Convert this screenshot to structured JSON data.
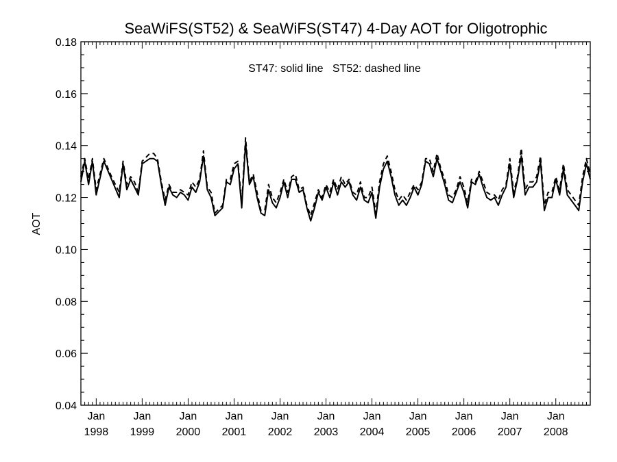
{
  "chart_data": {
    "type": "line",
    "title": "SeaWiFS(ST52) & SeaWiFS(ST47) 4-Day AOT for Oligotrophic",
    "annotation": "ST47: solid line   ST52: dashed line",
    "xlabel": "",
    "ylabel": "AOT",
    "ylim": [
      0.04,
      0.18
    ],
    "xlim": [
      "1997-09",
      "2008-10"
    ],
    "yticks": [
      "0.04",
      "0.06",
      "0.08",
      "0.10",
      "0.12",
      "0.14",
      "0.16",
      "0.18"
    ],
    "xticks": [
      {
        "month": "Jan",
        "year": "1998"
      },
      {
        "month": "Jan",
        "year": "1999"
      },
      {
        "month": "Jan",
        "year": "2000"
      },
      {
        "month": "Jan",
        "year": "2001"
      },
      {
        "month": "Jan",
        "year": "2002"
      },
      {
        "month": "Jan",
        "year": "2003"
      },
      {
        "month": "Jan",
        "year": "2004"
      },
      {
        "month": "Jan",
        "year": "2005"
      },
      {
        "month": "Jan",
        "year": "2006"
      },
      {
        "month": "Jan",
        "year": "2007"
      },
      {
        "month": "Jan",
        "year": "2008"
      }
    ],
    "grid": false,
    "legend": "none",
    "series": [
      {
        "name": "ST47",
        "style": "solid",
        "color": "#000000",
        "x": [
          "1997-09",
          "1997-10",
          "1997-11",
          "1997-12",
          "1998-01",
          "1998-03",
          "1998-05",
          "1998-07",
          "1998-08",
          "1998-09",
          "1998-10",
          "1998-11",
          "1998-12",
          "1999-01",
          "1999-03",
          "1999-04",
          "1999-05",
          "1999-06",
          "1999-07",
          "1999-08",
          "1999-09",
          "1999-10",
          "1999-11",
          "1999-12",
          "2000-01",
          "2000-02",
          "2000-03",
          "2000-04",
          "2000-05",
          "2000-06",
          "2000-07",
          "2000-08",
          "2000-10",
          "2000-11",
          "2000-12",
          "2001-01",
          "2001-02",
          "2001-03",
          "2001-04",
          "2001-05",
          "2001-06",
          "2001-07",
          "2001-08",
          "2001-09",
          "2001-10",
          "2001-11",
          "2001-12",
          "2002-01",
          "2002-02",
          "2002-03",
          "2002-04",
          "2002-05",
          "2002-06",
          "2002-07",
          "2002-08",
          "2002-09",
          "2002-10",
          "2002-11",
          "2002-12",
          "2003-01",
          "2003-02",
          "2003-03",
          "2003-04",
          "2003-05",
          "2003-06",
          "2003-07",
          "2003-08",
          "2003-09",
          "2003-10",
          "2003-11",
          "2003-12",
          "2004-01",
          "2004-02",
          "2004-03",
          "2004-04",
          "2004-05",
          "2004-06",
          "2004-07",
          "2004-08",
          "2004-09",
          "2004-10",
          "2004-11",
          "2004-12",
          "2005-01",
          "2005-02",
          "2005-03",
          "2005-04",
          "2005-05",
          "2005-06",
          "2005-07",
          "2005-08",
          "2005-09",
          "2005-10",
          "2005-11",
          "2005-12",
          "2006-01",
          "2006-02",
          "2006-03",
          "2006-04",
          "2006-05",
          "2006-06",
          "2006-07",
          "2006-08",
          "2006-09",
          "2006-10",
          "2006-11",
          "2006-12",
          "2007-01",
          "2007-02",
          "2007-03",
          "2007-04",
          "2007-05",
          "2007-06",
          "2007-07",
          "2007-08",
          "2007-09",
          "2007-10",
          "2007-11",
          "2007-12",
          "2008-01",
          "2008-02",
          "2008-03",
          "2008-04",
          "2008-05",
          "2008-06",
          "2008-07",
          "2008-08",
          "2008-09",
          "2008-10"
        ],
        "y": [
          0.126,
          0.134,
          0.125,
          0.134,
          0.121,
          0.134,
          0.127,
          0.12,
          0.133,
          0.123,
          0.127,
          0.124,
          0.121,
          0.133,
          0.135,
          0.135,
          0.134,
          0.125,
          0.117,
          0.124,
          0.121,
          0.12,
          0.122,
          0.121,
          0.119,
          0.124,
          0.122,
          0.126,
          0.136,
          0.123,
          0.12,
          0.113,
          0.116,
          0.126,
          0.125,
          0.131,
          0.133,
          0.116,
          0.141,
          0.125,
          0.128,
          0.12,
          0.114,
          0.113,
          0.123,
          0.118,
          0.116,
          0.12,
          0.126,
          0.12,
          0.127,
          0.127,
          0.122,
          0.123,
          0.116,
          0.111,
          0.116,
          0.122,
          0.119,
          0.124,
          0.12,
          0.126,
          0.121,
          0.126,
          0.124,
          0.126,
          0.121,
          0.119,
          0.124,
          0.119,
          0.118,
          0.122,
          0.112,
          0.124,
          0.131,
          0.134,
          0.128,
          0.121,
          0.117,
          0.119,
          0.117,
          0.12,
          0.124,
          0.121,
          0.125,
          0.134,
          0.133,
          0.128,
          0.135,
          0.13,
          0.125,
          0.119,
          0.118,
          0.122,
          0.126,
          0.122,
          0.116,
          0.126,
          0.125,
          0.129,
          0.124,
          0.12,
          0.119,
          0.12,
          0.117,
          0.121,
          0.124,
          0.133,
          0.12,
          0.127,
          0.136,
          0.121,
          0.124,
          0.124,
          0.126,
          0.134,
          0.115,
          0.12,
          0.12,
          0.127,
          0.121,
          0.131,
          0.121,
          0.119,
          0.117,
          0.115,
          0.126,
          0.133,
          0.127
        ]
      },
      {
        "name": "ST52",
        "style": "dashed",
        "color": "#000000",
        "x": [
          "1997-09",
          "1997-10",
          "1997-11",
          "1997-12",
          "1998-01",
          "1998-03",
          "1998-05",
          "1998-07",
          "1998-08",
          "1998-09",
          "1998-10",
          "1998-11",
          "1998-12",
          "1999-01",
          "1999-03",
          "1999-04",
          "1999-05",
          "1999-06",
          "1999-07",
          "1999-08",
          "1999-09",
          "1999-10",
          "1999-11",
          "1999-12",
          "2000-01",
          "2000-02",
          "2000-03",
          "2000-04",
          "2000-05",
          "2000-06",
          "2000-07",
          "2000-08",
          "2000-10",
          "2000-11",
          "2000-12",
          "2001-01",
          "2001-02",
          "2001-03",
          "2001-04",
          "2001-05",
          "2001-06",
          "2001-07",
          "2001-08",
          "2001-09",
          "2001-10",
          "2001-11",
          "2001-12",
          "2002-01",
          "2002-02",
          "2002-03",
          "2002-04",
          "2002-05",
          "2002-06",
          "2002-07",
          "2002-08",
          "2002-09",
          "2002-10",
          "2002-11",
          "2002-12",
          "2003-01",
          "2003-02",
          "2003-03",
          "2003-04",
          "2003-05",
          "2003-06",
          "2003-07",
          "2003-08",
          "2003-09",
          "2003-10",
          "2003-11",
          "2003-12",
          "2004-01",
          "2004-02",
          "2004-03",
          "2004-04",
          "2004-05",
          "2004-06",
          "2004-07",
          "2004-08",
          "2004-09",
          "2004-10",
          "2004-11",
          "2004-12",
          "2005-01",
          "2005-02",
          "2005-03",
          "2005-04",
          "2005-05",
          "2005-06",
          "2005-07",
          "2005-08",
          "2005-09",
          "2005-10",
          "2005-11",
          "2005-12",
          "2006-01",
          "2006-02",
          "2006-03",
          "2006-04",
          "2006-05",
          "2006-06",
          "2006-07",
          "2006-08",
          "2006-09",
          "2006-10",
          "2006-11",
          "2006-12",
          "2007-01",
          "2007-02",
          "2007-03",
          "2007-04",
          "2007-05",
          "2007-06",
          "2007-07",
          "2007-08",
          "2007-09",
          "2007-10",
          "2007-11",
          "2007-12",
          "2008-01",
          "2008-02",
          "2008-03",
          "2008-04",
          "2008-05",
          "2008-06",
          "2008-07",
          "2008-08",
          "2008-09",
          "2008-10"
        ],
        "y": [
          0.128,
          0.135,
          0.127,
          0.135,
          0.123,
          0.135,
          0.128,
          0.122,
          0.134,
          0.125,
          0.128,
          0.126,
          0.122,
          0.134,
          0.137,
          0.137,
          0.135,
          0.126,
          0.119,
          0.125,
          0.122,
          0.122,
          0.123,
          0.122,
          0.121,
          0.126,
          0.124,
          0.127,
          0.138,
          0.124,
          0.122,
          0.114,
          0.117,
          0.127,
          0.127,
          0.133,
          0.134,
          0.118,
          0.143,
          0.126,
          0.129,
          0.122,
          0.115,
          0.115,
          0.125,
          0.12,
          0.118,
          0.122,
          0.127,
          0.122,
          0.128,
          0.129,
          0.123,
          0.124,
          0.117,
          0.113,
          0.118,
          0.123,
          0.12,
          0.125,
          0.122,
          0.127,
          0.123,
          0.128,
          0.125,
          0.127,
          0.122,
          0.121,
          0.126,
          0.12,
          0.12,
          0.124,
          0.114,
          0.126,
          0.133,
          0.136,
          0.13,
          0.123,
          0.119,
          0.121,
          0.119,
          0.122,
          0.125,
          0.123,
          0.126,
          0.135,
          0.135,
          0.13,
          0.137,
          0.131,
          0.127,
          0.121,
          0.12,
          0.123,
          0.128,
          0.124,
          0.118,
          0.127,
          0.126,
          0.13,
          0.126,
          0.122,
          0.121,
          0.121,
          0.119,
          0.123,
          0.125,
          0.135,
          0.122,
          0.128,
          0.139,
          0.123,
          0.126,
          0.126,
          0.128,
          0.136,
          0.117,
          0.122,
          0.122,
          0.128,
          0.123,
          0.133,
          0.123,
          0.121,
          0.119,
          0.117,
          0.128,
          0.135,
          0.129
        ]
      }
    ]
  }
}
